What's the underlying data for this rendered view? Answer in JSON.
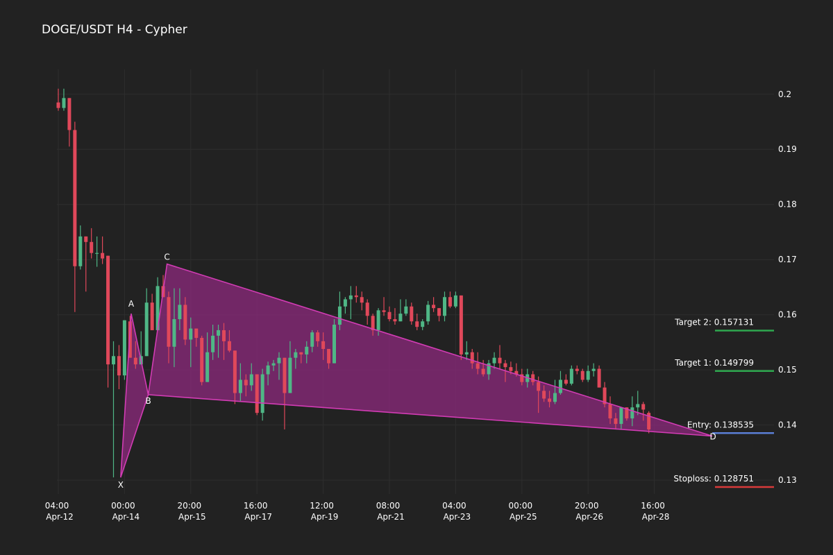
{
  "title": "DOGE/USDT H4 - Cypher",
  "chart_data": {
    "type": "candlestick",
    "title": "DOGE/USDT H4 - Cypher",
    "ylim": [
      0.1275,
      0.2045
    ],
    "y_ticks": [
      0.13,
      0.14,
      0.15,
      0.16,
      0.17,
      0.18,
      0.19,
      0.2
    ],
    "y_tick_labels": [
      "0.13",
      "0.14",
      "0.15",
      "0.16",
      "0.17",
      "0.18",
      "0.19",
      "0.2"
    ],
    "x_ticks": [
      {
        "index": 0,
        "time": "04:00",
        "date": "Apr-12"
      },
      {
        "index": 12,
        "time": "00:00",
        "date": "Apr-14"
      },
      {
        "index": 24,
        "time": "20:00",
        "date": "Apr-15"
      },
      {
        "index": 36,
        "time": "16:00",
        "date": "Apr-17"
      },
      {
        "index": 48,
        "time": "12:00",
        "date": "Apr-19"
      },
      {
        "index": 60,
        "time": "08:00",
        "date": "Apr-21"
      },
      {
        "index": 72,
        "time": "04:00",
        "date": "Apr-23"
      },
      {
        "index": 84,
        "time": "00:00",
        "date": "Apr-25"
      },
      {
        "index": 96,
        "time": "20:00",
        "date": "Apr-26"
      },
      {
        "index": 108,
        "time": "16:00",
        "date": "Apr-28"
      }
    ],
    "grid": true,
    "colors": {
      "up": "#4fb786",
      "down": "#e0485a",
      "pattern_fill": "#8e2a7e",
      "pattern_line": "#d23cb4",
      "target": "#2ea84f",
      "entry": "#5b7fd6",
      "stoploss": "#d93a3a"
    },
    "candles": [
      [
        0.1985,
        0.201,
        0.197,
        0.1975
      ],
      [
        0.1975,
        0.201,
        0.197,
        0.1993
      ],
      [
        0.1993,
        0.1993,
        0.1905,
        0.1935
      ],
      [
        0.1935,
        0.195,
        0.1605,
        0.1688
      ],
      [
        0.1688,
        0.1762,
        0.1682,
        0.1742
      ],
      [
        0.1742,
        0.1742,
        0.1642,
        0.1732
      ],
      [
        0.1732,
        0.1757,
        0.1702,
        0.1712
      ],
      [
        0.1712,
        0.1742,
        0.1687,
        0.1712
      ],
      [
        0.1712,
        0.1742,
        0.1692,
        0.1702
      ],
      [
        0.1707,
        0.1707,
        0.1468,
        0.151
      ],
      [
        0.151,
        0.1552,
        0.1305,
        0.1525
      ],
      [
        0.1525,
        0.1545,
        0.1465,
        0.149
      ],
      [
        0.149,
        0.159,
        0.1482,
        0.159
      ],
      [
        0.1588,
        0.1598,
        0.1525,
        0.1522
      ],
      [
        0.1522,
        0.1552,
        0.1502,
        0.151
      ],
      [
        0.151,
        0.157,
        0.151,
        0.1525
      ],
      [
        0.1525,
        0.1648,
        0.1525,
        0.1622
      ],
      [
        0.1622,
        0.1638,
        0.1572,
        0.1572
      ],
      [
        0.1572,
        0.1668,
        0.1572,
        0.1652
      ],
      [
        0.1652,
        0.1672,
        0.1632,
        0.1632
      ],
      [
        0.1632,
        0.1642,
        0.1512,
        0.1542
      ],
      [
        0.1542,
        0.1648,
        0.1505,
        0.1592
      ],
      [
        0.1592,
        0.1648,
        0.1572,
        0.1618
      ],
      [
        0.1618,
        0.1632,
        0.1545,
        0.1555
      ],
      [
        0.1555,
        0.1595,
        0.1505,
        0.1575
      ],
      [
        0.1575,
        0.1575,
        0.1542,
        0.1558
      ],
      [
        0.1558,
        0.1562,
        0.1472,
        0.1478
      ],
      [
        0.1478,
        0.1568,
        0.1478,
        0.1532
      ],
      [
        0.1532,
        0.1582,
        0.1518,
        0.1562
      ],
      [
        0.1562,
        0.1582,
        0.1522,
        0.1572
      ],
      [
        0.1572,
        0.1585,
        0.1518,
        0.1552
      ],
      [
        0.1552,
        0.1572,
        0.1532,
        0.1535
      ],
      [
        0.1535,
        0.1535,
        0.1438,
        0.1458
      ],
      [
        0.1458,
        0.1512,
        0.1442,
        0.1482
      ],
      [
        0.1482,
        0.1492,
        0.1452,
        0.1472
      ],
      [
        0.1472,
        0.1512,
        0.1462,
        0.1492
      ],
      [
        0.1492,
        0.1492,
        0.1418,
        0.1422
      ],
      [
        0.1422,
        0.1502,
        0.1408,
        0.1492
      ],
      [
        0.1492,
        0.1515,
        0.1472,
        0.1508
      ],
      [
        0.1508,
        0.1518,
        0.1498,
        0.1512
      ],
      [
        0.1512,
        0.1532,
        0.1482,
        0.1522
      ],
      [
        0.1522,
        0.1522,
        0.1392,
        0.1458
      ],
      [
        0.1458,
        0.1552,
        0.1458,
        0.1522
      ],
      [
        0.1522,
        0.1538,
        0.1502,
        0.1532
      ],
      [
        0.1532,
        0.1532,
        0.1512,
        0.1528
      ],
      [
        0.1528,
        0.1552,
        0.1512,
        0.1542
      ],
      [
        0.1542,
        0.1572,
        0.1532,
        0.1568
      ],
      [
        0.1568,
        0.1572,
        0.1542,
        0.1552
      ],
      [
        0.1552,
        0.1568,
        0.1518,
        0.1538
      ],
      [
        0.1538,
        0.1538,
        0.1502,
        0.1512
      ],
      [
        0.1512,
        0.1592,
        0.1512,
        0.1582
      ],
      [
        0.1582,
        0.1642,
        0.1572,
        0.1615
      ],
      [
        0.1615,
        0.1632,
        0.1602,
        0.1628
      ],
      [
        0.1628,
        0.1652,
        0.1592,
        0.1635
      ],
      [
        0.1635,
        0.1652,
        0.1622,
        0.1632
      ],
      [
        0.1632,
        0.1642,
        0.1608,
        0.1622
      ],
      [
        0.1622,
        0.1628,
        0.1582,
        0.1598
      ],
      [
        0.1598,
        0.1602,
        0.1562,
        0.1572
      ],
      [
        0.1572,
        0.1612,
        0.1562,
        0.1608
      ],
      [
        0.1608,
        0.1632,
        0.1598,
        0.1605
      ],
      [
        0.1605,
        0.1615,
        0.1588,
        0.1592
      ],
      [
        0.1592,
        0.1612,
        0.1582,
        0.1588
      ],
      [
        0.1588,
        0.1628,
        0.1588,
        0.1602
      ],
      [
        0.1602,
        0.1628,
        0.1598,
        0.1615
      ],
      [
        0.1615,
        0.1622,
        0.1582,
        0.1588
      ],
      [
        0.1588,
        0.1602,
        0.1572,
        0.1578
      ],
      [
        0.1578,
        0.1592,
        0.1572,
        0.1588
      ],
      [
        0.1588,
        0.1625,
        0.1582,
        0.1618
      ],
      [
        0.1618,
        0.1632,
        0.1605,
        0.1612
      ],
      [
        0.1612,
        0.1612,
        0.1588,
        0.1598
      ],
      [
        0.1598,
        0.1642,
        0.1588,
        0.1632
      ],
      [
        0.1632,
        0.1642,
        0.1612,
        0.1615
      ],
      [
        0.1615,
        0.1642,
        0.1612,
        0.1635
      ],
      [
        0.1635,
        0.1635,
        0.1518,
        0.1528
      ],
      [
        0.1528,
        0.1552,
        0.1518,
        0.1532
      ],
      [
        0.1532,
        0.1538,
        0.1502,
        0.1512
      ],
      [
        0.1512,
        0.1532,
        0.1492,
        0.1502
      ],
      [
        0.1502,
        0.1518,
        0.1488,
        0.1492
      ],
      [
        0.1492,
        0.1518,
        0.1482,
        0.1512
      ],
      [
        0.1512,
        0.1532,
        0.1502,
        0.1522
      ],
      [
        0.1522,
        0.1545,
        0.1502,
        0.1512
      ],
      [
        0.1512,
        0.1518,
        0.1478,
        0.1505
      ],
      [
        0.1505,
        0.1515,
        0.1492,
        0.1498
      ],
      [
        0.1498,
        0.1512,
        0.1488,
        0.1492
      ],
      [
        0.1492,
        0.1502,
        0.1472,
        0.1478
      ],
      [
        0.1478,
        0.1502,
        0.1468,
        0.1492
      ],
      [
        0.1492,
        0.1498,
        0.1472,
        0.1478
      ],
      [
        0.1478,
        0.1488,
        0.1422,
        0.1462
      ],
      [
        0.1462,
        0.1472,
        0.1442,
        0.1448
      ],
      [
        0.1448,
        0.1462,
        0.1432,
        0.1442
      ],
      [
        0.1442,
        0.1482,
        0.1438,
        0.1458
      ],
      [
        0.1458,
        0.1498,
        0.1455,
        0.1482
      ],
      [
        0.1482,
        0.1492,
        0.1472,
        0.1475
      ],
      [
        0.1475,
        0.1508,
        0.1472,
        0.1502
      ],
      [
        0.1502,
        0.1508,
        0.1492,
        0.1498
      ],
      [
        0.1498,
        0.1502,
        0.1478,
        0.1482
      ],
      [
        0.1482,
        0.1508,
        0.1478,
        0.1498
      ],
      [
        0.1498,
        0.1512,
        0.1488,
        0.1502
      ],
      [
        0.1502,
        0.1508,
        0.1468,
        0.1468
      ],
      [
        0.1468,
        0.1478,
        0.1432,
        0.1438
      ],
      [
        0.1438,
        0.1452,
        0.1402,
        0.1412
      ],
      [
        0.1412,
        0.1422,
        0.1392,
        0.1402
      ],
      [
        0.1402,
        0.1432,
        0.1392,
        0.1432
      ],
      [
        0.1432,
        0.1432,
        0.1408,
        0.1412
      ],
      [
        0.1412,
        0.1452,
        0.1398,
        0.1432
      ],
      [
        0.1432,
        0.1462,
        0.1418,
        0.1438
      ],
      [
        0.1438,
        0.1442,
        0.1408,
        0.1428
      ],
      [
        0.1422,
        0.1425,
        0.1385,
        0.1392
      ]
    ],
    "pattern": {
      "points": [
        {
          "label": "X",
          "index": 11.3,
          "price": 0.1305
        },
        {
          "label": "A",
          "index": 13.2,
          "price": 0.1602
        },
        {
          "label": "B",
          "index": 16.3,
          "price": 0.1455
        },
        {
          "label": "C",
          "index": 19.7,
          "price": 0.1692
        },
        {
          "label": "D",
          "index": 118.5,
          "price": 0.138
        }
      ]
    },
    "levels": [
      {
        "name": "Target 2",
        "label": "Target 2: 0.157131",
        "price": 0.157131,
        "kind": "target"
      },
      {
        "name": "Target 1",
        "label": "Target 1: 0.149799",
        "price": 0.149799,
        "kind": "target"
      },
      {
        "name": "Entry",
        "label": "Entry: 0.138535",
        "price": 0.138535,
        "kind": "entry"
      },
      {
        "name": "Stoploss",
        "label": "Stoploss: 0.128751",
        "price": 0.128751,
        "kind": "stoploss"
      }
    ]
  }
}
